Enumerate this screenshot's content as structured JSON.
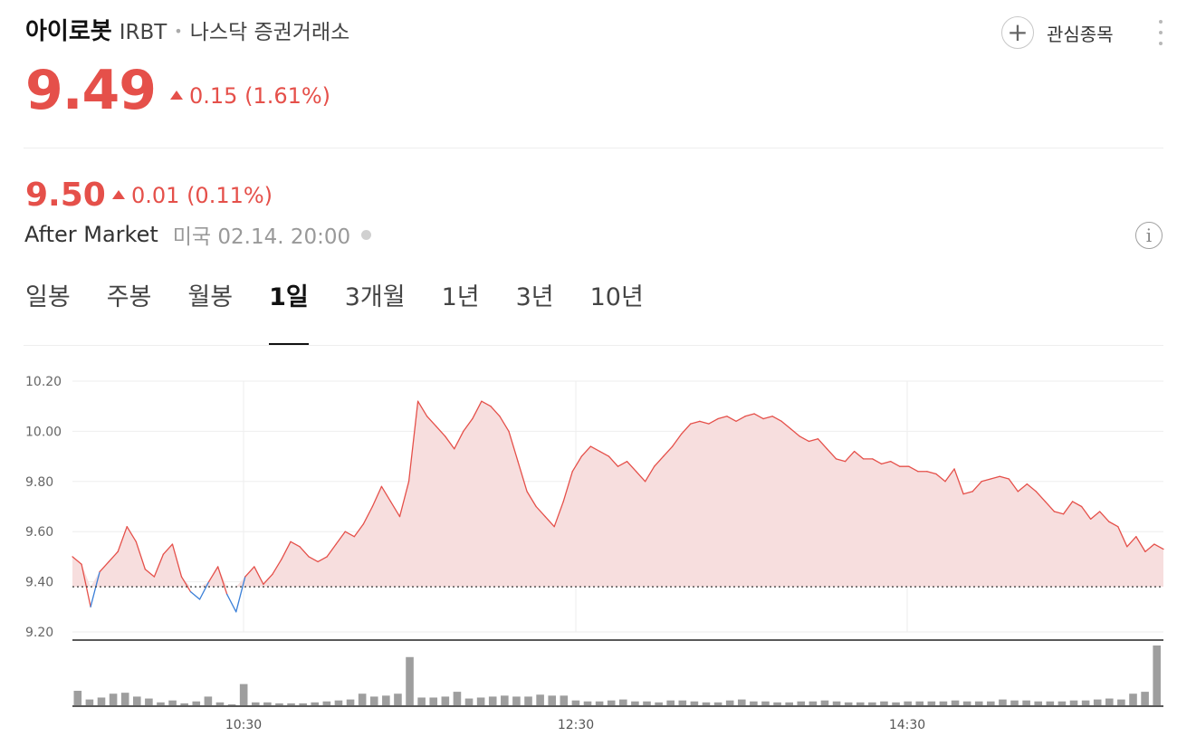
{
  "header": {
    "name": "아이로봇",
    "ticker": "IRBT",
    "separator": "•",
    "exchange": "나스닥 증권거래소",
    "watch_label": "관심종목"
  },
  "quote": {
    "price": "9.49",
    "change": "0.15 (1.61%)",
    "after_price": "9.50",
    "after_change": "0.01 (0.11%)",
    "session_label": "After Market",
    "session_time": "미국 02.14. 20:00"
  },
  "tabs": [
    {
      "label": "일봉",
      "active": false
    },
    {
      "label": "주봉",
      "active": false
    },
    {
      "label": "월봉",
      "active": false
    },
    {
      "label": "1일",
      "active": true
    },
    {
      "label": "3개월",
      "active": false
    },
    {
      "label": "1년",
      "active": false
    },
    {
      "label": "3년",
      "active": false
    },
    {
      "label": "10년",
      "active": false
    }
  ],
  "colors": {
    "up": "#e5504a",
    "down": "#3a7fd8",
    "fill": "#f7dede",
    "volume": "#9e9e9e"
  },
  "chart_data": {
    "type": "line",
    "y_ticks": [
      "10.20",
      "10.00",
      "9.80",
      "9.60",
      "9.40",
      "9.20"
    ],
    "x_ticks": [
      "10:30",
      "12:30",
      "14:30"
    ],
    "ylim": [
      9.2,
      10.2
    ],
    "baseline": 9.38,
    "grid": true,
    "price_series": [
      9.5,
      9.47,
      9.3,
      9.44,
      9.48,
      9.52,
      9.62,
      9.56,
      9.45,
      9.42,
      9.51,
      9.55,
      9.42,
      9.36,
      9.33,
      9.4,
      9.46,
      9.35,
      9.28,
      9.42,
      9.46,
      9.39,
      9.43,
      9.49,
      9.56,
      9.54,
      9.5,
      9.48,
      9.5,
      9.55,
      9.6,
      9.58,
      9.63,
      9.7,
      9.78,
      9.72,
      9.66,
      9.8,
      10.12,
      10.06,
      10.02,
      9.98,
      9.93,
      10.0,
      10.05,
      10.12,
      10.1,
      10.06,
      10.0,
      9.88,
      9.76,
      9.7,
      9.66,
      9.62,
      9.72,
      9.84,
      9.9,
      9.94,
      9.92,
      9.9,
      9.86,
      9.88,
      9.84,
      9.8,
      9.86,
      9.9,
      9.94,
      9.99,
      10.03,
      10.04,
      10.03,
      10.05,
      10.06,
      10.04,
      10.06,
      10.07,
      10.05,
      10.06,
      10.04,
      10.01,
      9.98,
      9.96,
      9.97,
      9.93,
      9.89,
      9.88,
      9.92,
      9.89,
      9.89,
      9.87,
      9.88,
      9.86,
      9.86,
      9.84,
      9.84,
      9.83,
      9.8,
      9.85,
      9.75,
      9.76,
      9.8,
      9.81,
      9.82,
      9.81,
      9.76,
      9.79,
      9.76,
      9.72,
      9.68,
      9.67,
      9.72,
      9.7,
      9.65,
      9.68,
      9.64,
      9.62,
      9.54,
      9.58,
      9.52,
      9.55,
      9.53
    ],
    "volume_series": [
      15,
      6,
      8,
      12,
      13,
      9,
      7,
      3,
      5,
      2,
      4,
      9,
      3,
      1,
      22,
      3,
      3,
      2,
      2,
      2,
      3,
      4,
      5,
      6,
      12,
      9,
      10,
      12,
      50,
      8,
      8,
      9,
      14,
      7,
      8,
      9,
      10,
      9,
      9,
      11,
      10,
      10,
      5,
      4,
      4,
      5,
      6,
      4,
      4,
      3,
      5,
      5,
      4,
      3,
      3,
      5,
      6,
      4,
      4,
      3,
      3,
      4,
      4,
      5,
      4,
      3,
      3,
      3,
      4,
      3,
      4,
      4,
      4,
      4,
      5,
      4,
      4,
      4,
      6,
      5,
      5,
      4,
      4,
      4,
      5,
      5,
      6,
      7,
      6,
      12,
      14,
      62
    ]
  }
}
